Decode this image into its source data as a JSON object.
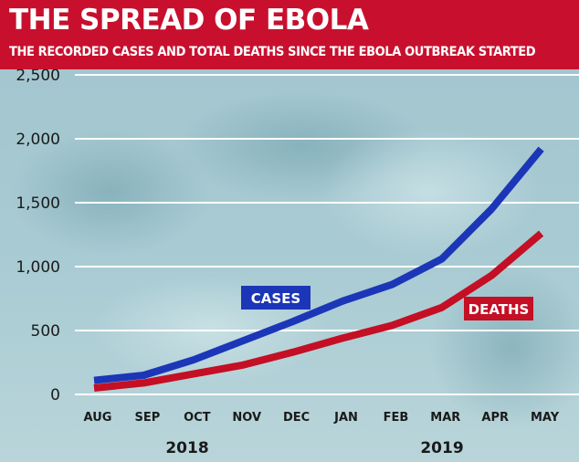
{
  "header": {
    "title": "THE SPREAD OF EBOLA",
    "subtitle": "THE RECORDED CASES AND TOTAL DEATHS SINCE THE EBOLA OUTBREAK STARTED"
  },
  "colors": {
    "title_bar": "#c8102e",
    "cases": "#1c36b8",
    "deaths": "#c40f24",
    "photo_tint": "#a9cbd3",
    "gridline": "#ffffff"
  },
  "chart_data": {
    "type": "line",
    "title": "THE SPREAD OF EBOLA",
    "subtitle": "THE RECORDED CASES AND TOTAL DEATHS SINCE THE EBOLA OUTBREAK STARTED",
    "categories": [
      "AUG",
      "SEP",
      "OCT",
      "NOV",
      "DEC",
      "JAN",
      "FEB",
      "MAR",
      "APR",
      "MAY"
    ],
    "year_labels": [
      "2018",
      "2019"
    ],
    "series": [
      {
        "name": "CASES",
        "color": "#1c36b8",
        "values": [
          110,
          150,
          270,
          420,
          570,
          730,
          860,
          1060,
          1450,
          1920
        ]
      },
      {
        "name": "DEATHS",
        "color": "#c40f24",
        "values": [
          50,
          90,
          160,
          230,
          330,
          440,
          540,
          680,
          930,
          1260
        ]
      }
    ],
    "yticks": [
      0,
      500,
      1000,
      1500,
      2000,
      2500
    ],
    "ytick_labels": [
      "0",
      "500",
      "1,000",
      "1,500",
      "2,000",
      "2,500"
    ],
    "ylim": [
      0,
      2500
    ],
    "xlabel": "",
    "ylabel": "",
    "grid": true,
    "legend": "inline labels"
  }
}
